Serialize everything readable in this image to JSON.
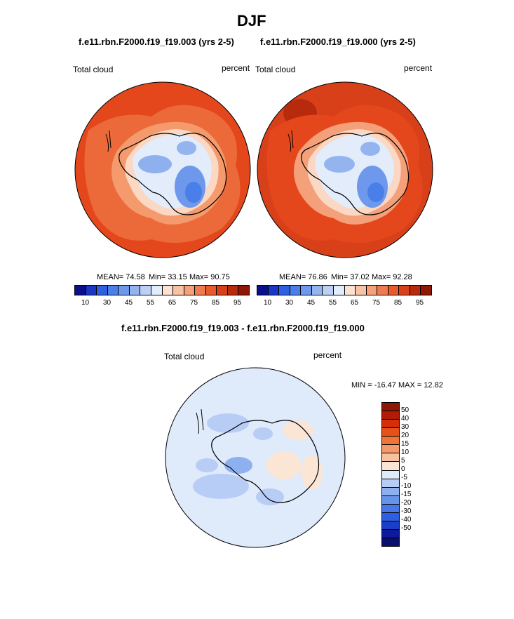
{
  "title": "DJF",
  "panels": [
    {
      "case_title": "f.e11.rbn.F2000.f19_f19.003 (yrs 2-5)",
      "variable": "Total cloud",
      "units": "percent",
      "mean": "MEAN=  74.58",
      "min": "Min=  33.15",
      "max": "Max=  90.75"
    },
    {
      "case_title": "f.e11.rbn.F2000.f19_f19.000 (yrs 2-5)",
      "variable": "Total cloud",
      "units": "percent",
      "mean": "MEAN=  76.86",
      "min": "Min=  37.02",
      "max": "Max=  92.28"
    }
  ],
  "diff": {
    "title": "f.e11.rbn.F2000.f19_f19.003 - f.e11.rbn.F2000.f19_f19.000",
    "variable": "Total cloud",
    "units": "percent",
    "minmax": "MIN = -16.47 MAX =  12.82"
  },
  "colorbar": {
    "colors": [
      "#0a0f8c",
      "#1a37c4",
      "#2f5fe0",
      "#4a7ee8",
      "#6d98ec",
      "#94b4f0",
      "#bcd0f5",
      "#e2ecfb",
      "#fde2d2",
      "#f8c2a4",
      "#f4a07a",
      "#ee7a4f",
      "#e65a2c",
      "#d8401a",
      "#b82a0c",
      "#8e1706"
    ],
    "labels": [
      "10",
      "30",
      "45",
      "55",
      "65",
      "75",
      "85",
      "95"
    ]
  },
  "diff_colorbar": {
    "colors": [
      "#8e1706",
      "#b01c06",
      "#d42e0a",
      "#e8501a",
      "#f07436",
      "#f49a68",
      "#f7c2a0",
      "#fbe6d6",
      "#dfeafb",
      "#b8cdf5",
      "#8fb0ef",
      "#6893ea",
      "#4878e6",
      "#2e5fe0",
      "#1a3ec8",
      "#0d1a99",
      "#0a0f6e"
    ],
    "labels": [
      "50",
      "40",
      "30",
      "20",
      "15",
      "10",
      "5",
      "0",
      "-5",
      "-10",
      "-15",
      "-20",
      "-30",
      "-40",
      "-50"
    ]
  }
}
